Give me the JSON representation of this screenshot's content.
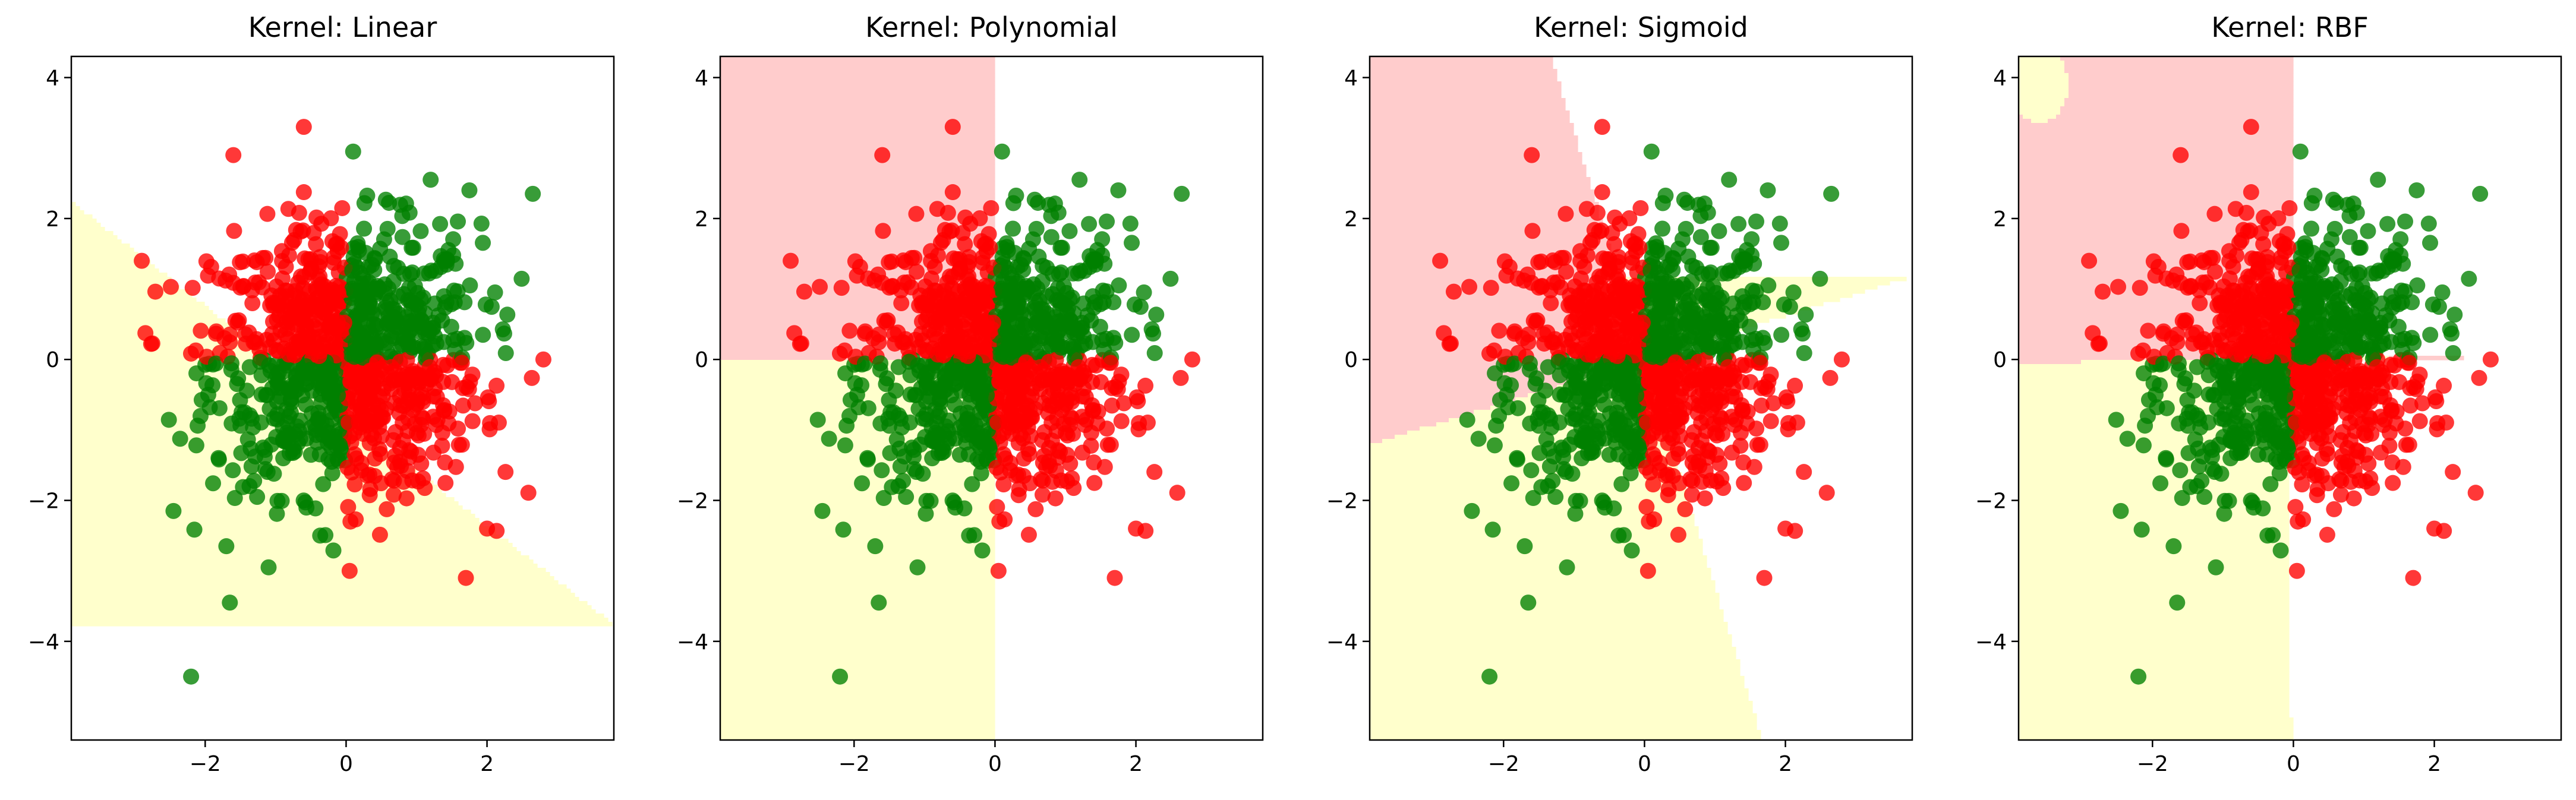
{
  "chart_data": [
    {
      "type": "scatter",
      "title": "Kernel: Linear",
      "kernel": "linear",
      "xlim": [
        -3.9,
        3.8
      ],
      "ylim": [
        -5.4,
        4.3
      ],
      "xticks": [
        -2,
        0,
        2
      ],
      "yticks": [
        -4,
        -2,
        0,
        2,
        4
      ],
      "xtick_labels": [
        "−2",
        "0",
        "2"
      ],
      "ytick_labels": [
        "−4",
        "−2",
        "0",
        "2",
        "4"
      ]
    },
    {
      "type": "scatter",
      "title": "Kernel: Polynomial",
      "kernel": "polynomial",
      "xlim": [
        -3.9,
        3.8
      ],
      "ylim": [
        -5.4,
        4.3
      ],
      "xticks": [
        -2,
        0,
        2
      ],
      "yticks": [
        -4,
        -2,
        0,
        2,
        4
      ],
      "xtick_labels": [
        "−2",
        "0",
        "2"
      ],
      "ytick_labels": [
        "−4",
        "−2",
        "0",
        "2",
        "4"
      ]
    },
    {
      "type": "scatter",
      "title": "Kernel: Sigmoid",
      "kernel": "sigmoid",
      "xlim": [
        -3.9,
        3.8
      ],
      "ylim": [
        -5.4,
        4.3
      ],
      "xticks": [
        -2,
        0,
        2
      ],
      "yticks": [
        -4,
        -2,
        0,
        2,
        4
      ],
      "xtick_labels": [
        "−2",
        "0",
        "2"
      ],
      "ytick_labels": [
        "−4",
        "−2",
        "0",
        "2",
        "4"
      ]
    },
    {
      "type": "scatter",
      "title": "Kernel: RBF",
      "kernel": "rbf",
      "xlim": [
        -3.9,
        3.8
      ],
      "ylim": [
        -5.4,
        4.3
      ],
      "xticks": [
        -2,
        0,
        2
      ],
      "yticks": [
        -4,
        -2,
        0,
        2,
        4
      ],
      "xtick_labels": [
        "−2",
        "0",
        "2"
      ],
      "ytick_labels": [
        "−4",
        "−2",
        "0",
        "2",
        "4"
      ]
    }
  ],
  "points": {
    "classes": [
      "red",
      "green"
    ],
    "rule": "red when x*y < 0, green when x*y > 0",
    "approx_count": 1000,
    "outliers": [
      {
        "x": -0.6,
        "y": 3.3,
        "class": "red"
      },
      {
        "x": 0.1,
        "y": 2.95,
        "class": "green"
      },
      {
        "x": -1.6,
        "y": 2.9,
        "class": "red"
      },
      {
        "x": 1.2,
        "y": 2.55,
        "class": "green"
      },
      {
        "x": 2.65,
        "y": 2.35,
        "class": "green"
      },
      {
        "x": 1.75,
        "y": 2.4,
        "class": "green"
      },
      {
        "x": -2.9,
        "y": 1.4,
        "class": "red"
      },
      {
        "x": -2.2,
        "y": -4.5,
        "class": "green"
      },
      {
        "x": -1.65,
        "y": -3.45,
        "class": "green"
      },
      {
        "x": -1.7,
        "y": -2.65,
        "class": "green"
      },
      {
        "x": -1.1,
        "y": -2.95,
        "class": "green"
      },
      {
        "x": 0.05,
        "y": -3.0,
        "class": "red"
      },
      {
        "x": 1.7,
        "y": -3.1,
        "class": "red"
      },
      {
        "x": 2.0,
        "y": -2.4,
        "class": "red"
      },
      {
        "x": 2.8,
        "y": 0.0,
        "class": "red"
      },
      {
        "x": -2.45,
        "y": -2.15,
        "class": "green"
      }
    ]
  },
  "colors": {
    "class_red": "#ff0000",
    "class_green": "#008000",
    "region_red": "#ffcccc",
    "region_yellow": "#ffffcc",
    "frame": "#000000"
  }
}
